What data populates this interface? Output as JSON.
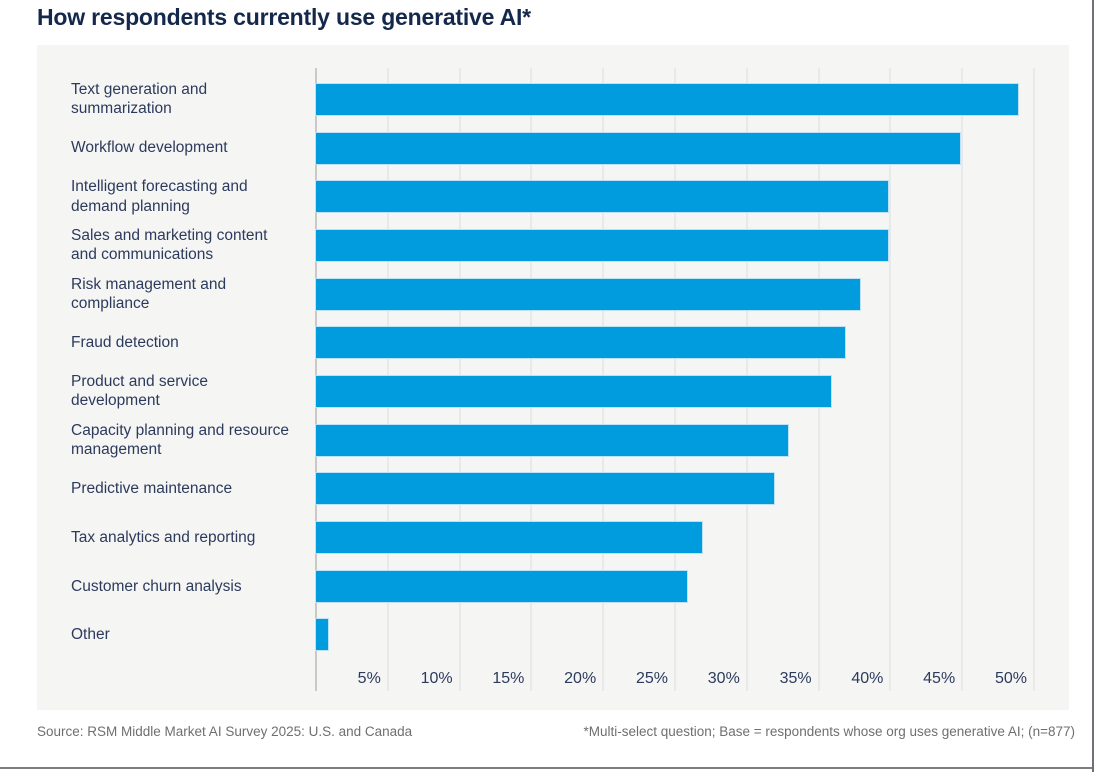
{
  "page": {
    "title": "How respondents currently use generative AI*",
    "footer": {
      "source": "Source: RSM Middle Market AI Survey 2025: U.S. and Canada",
      "note": "*Multi-select question; Base = respondents whose org uses generative AI; (n=877)"
    }
  },
  "colors": {
    "bar": "#009cde",
    "bar_edge": "#bfe1f5",
    "title_text": "#14284b",
    "label_text": "#2c3a5c",
    "panel_bg": "#f5f5f4",
    "gridline": "#e9e9e9",
    "axis_line": "#c9c9c9",
    "footer_text": "#6f6f6f",
    "rule": "#7d7d7d"
  },
  "chart_data": {
    "type": "bar",
    "orientation": "horizontal",
    "title": "How respondents currently use generative AI*",
    "categories": [
      "Text generation and summarization",
      "Workflow development",
      "Intelligent forecasting and demand planning",
      "Sales and marketing content and communications",
      "Risk management and compliance",
      "Fraud detection",
      "Product and service development",
      "Capacity planning and resource management",
      "Predictive maintenance",
      "Tax analytics and reporting",
      "Customer churn analysis",
      "Other"
    ],
    "values": [
      49,
      45,
      40,
      40,
      38,
      37,
      36,
      33,
      32,
      27,
      26,
      1
    ],
    "unit": "%",
    "xlabel": "",
    "ylabel": "",
    "xlim": [
      0,
      52.5
    ],
    "xticks": [
      5,
      10,
      15,
      20,
      25,
      30,
      35,
      40,
      45,
      50
    ],
    "xtick_labels": [
      "5%",
      "10%",
      "15%",
      "20%",
      "25%",
      "30%",
      "35%",
      "40%",
      "45%",
      "50%"
    ],
    "grid": "vertical",
    "legend": "none"
  }
}
